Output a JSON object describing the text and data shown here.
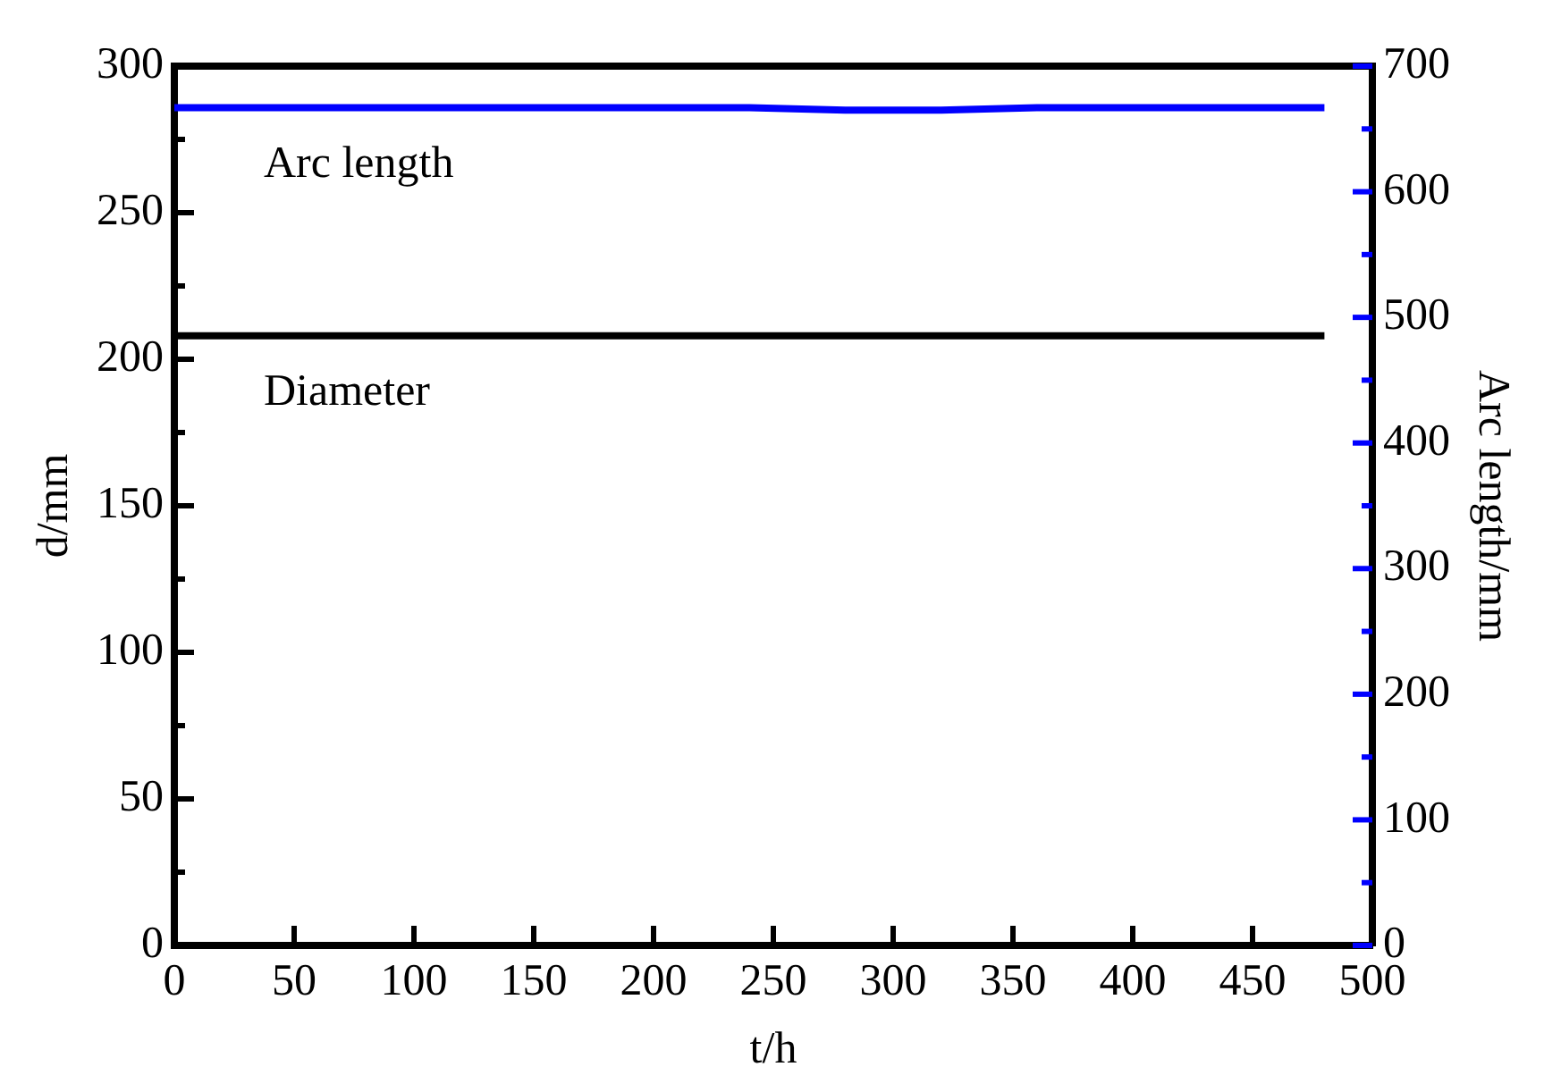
{
  "chart_data": {
    "type": "line",
    "xlabel": "t/h",
    "ylabel": "d/mm",
    "y2label": "Arc length/mm",
    "x": [
      0,
      40,
      80,
      120,
      160,
      200,
      240,
      280,
      320,
      360,
      400,
      440,
      480
    ],
    "series": [
      {
        "color": "#0000ff",
        "axis": "y2",
        "values": [
          667,
          667,
          667,
          667,
          667,
          667,
          667,
          665,
          665,
          667,
          667,
          667,
          667
        ]
      },
      {
        "color": "#000000",
        "values": [
          208,
          208,
          208,
          208,
          208,
          208,
          208,
          208,
          208,
          208,
          208,
          208,
          208
        ]
      }
    ],
    "xlim": [
      0,
      500
    ],
    "xticks": [
      0,
      50,
      100,
      150,
      200,
      250,
      300,
      350,
      400,
      450,
      500
    ],
    "ylim": [
      0,
      300
    ],
    "yticks": [
      0,
      {
        "value": 25,
        "label": null
      },
      50,
      {
        "value": 75,
        "label": null
      },
      100,
      {
        "value": 125,
        "label": null
      },
      150,
      {
        "value": 175,
        "label": null
      },
      200,
      {
        "value": 225,
        "label": null
      },
      250,
      {
        "value": 275,
        "label": null
      },
      300
    ],
    "y2lim": [
      0,
      700
    ],
    "y2ticks": [
      0,
      {
        "value": 50,
        "label": null
      },
      100,
      {
        "value": 150,
        "label": null
      },
      200,
      {
        "value": 250,
        "label": null
      },
      300,
      {
        "value": 350,
        "label": null
      },
      400,
      {
        "value": 450,
        "label": null
      },
      500,
      {
        "value": 550,
        "label": null
      },
      600,
      {
        "value": 650,
        "label": null
      },
      700
    ],
    "annotations": [
      "Arc length",
      "Diameter"
    ],
    "grid": false,
    "legend": false,
    "marker": "none",
    "line_style": "solid"
  }
}
